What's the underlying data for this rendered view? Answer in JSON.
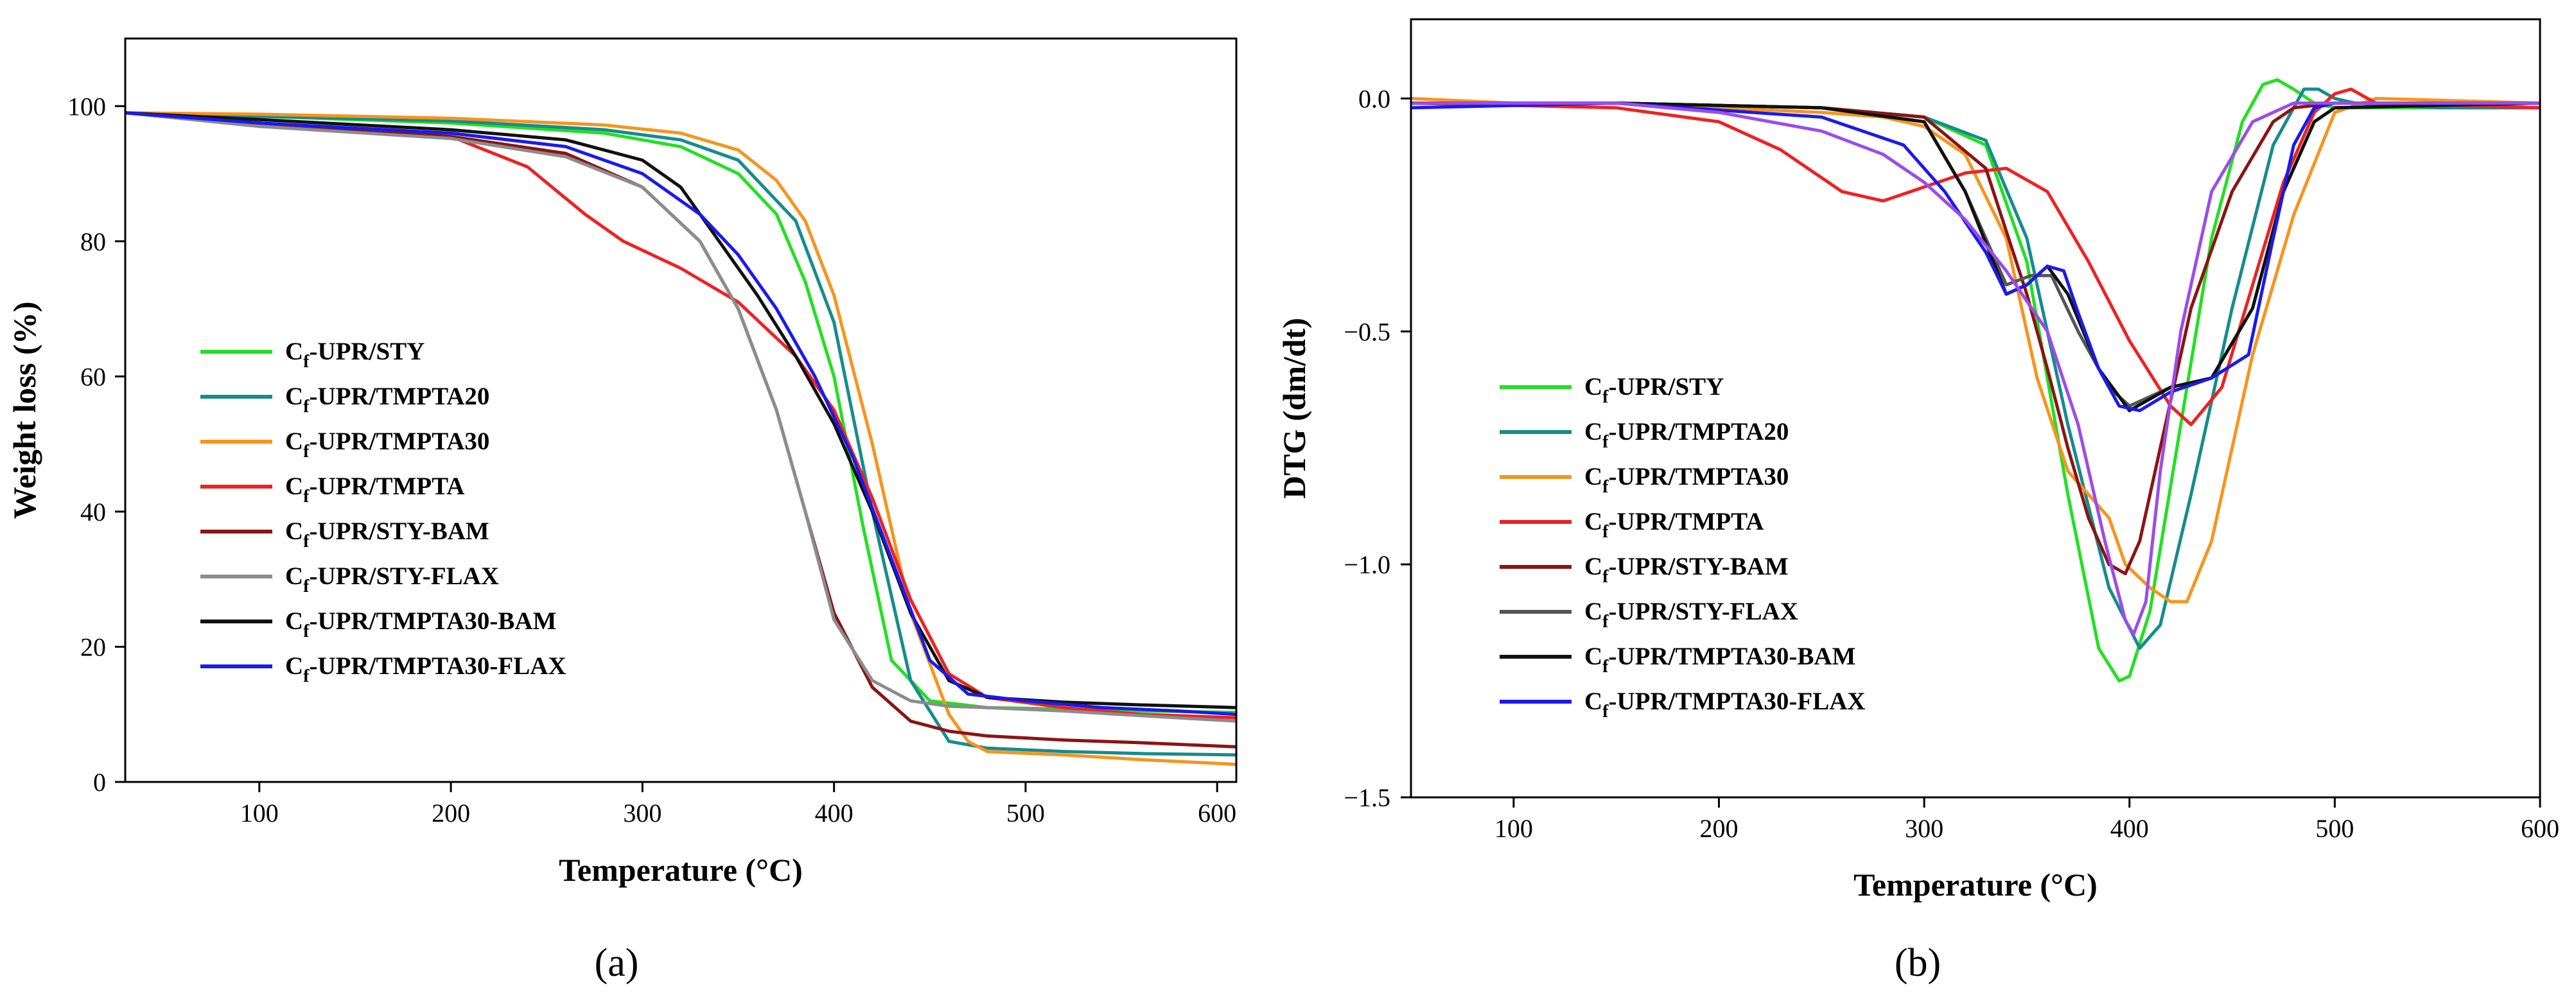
{
  "chart_data": [
    {
      "type": "line",
      "panel_label": "(a)",
      "xlabel": "Temperature (°C)",
      "ylabel": "Weight loss (%)",
      "xlim": [
        30,
        610
      ],
      "ylim": [
        0,
        110
      ],
      "xticks": [
        100,
        200,
        300,
        400,
        500,
        600
      ],
      "yticks": [
        0,
        20,
        40,
        60,
        80,
        100
      ],
      "legend_position": "left-middle",
      "series": [
        {
          "name": "Cf-UPR/STY",
          "prefix": "C",
          "sub": "f",
          "suffix": "-UPR/STY",
          "color": "#22e022",
          "x": [
            30,
            100,
            200,
            280,
            320,
            350,
            370,
            385,
            400,
            415,
            430,
            450,
            480,
            520,
            560,
            610
          ],
          "y": [
            99,
            98.5,
            97.5,
            96,
            94,
            90,
            84,
            74,
            60,
            38,
            18,
            12,
            11,
            10.8,
            10.5,
            10.3
          ]
        },
        {
          "name": "Cf-UPR/TMPTA20",
          "prefix": "C",
          "sub": "f",
          "suffix": "-UPR/TMPTA20",
          "color": "#168c8c",
          "x": [
            30,
            100,
            200,
            280,
            320,
            350,
            380,
            400,
            420,
            440,
            460,
            480,
            520,
            560,
            610
          ],
          "y": [
            99,
            98.5,
            97.8,
            96.5,
            95,
            92,
            83,
            68,
            40,
            15,
            6,
            5,
            4.5,
            4.2,
            4
          ]
        },
        {
          "name": "Cf-UPR/TMPTA30",
          "prefix": "C",
          "sub": "f",
          "suffix": "-UPR/TMPTA30",
          "color": "#f7941d",
          "x": [
            30,
            100,
            200,
            280,
            320,
            350,
            370,
            385,
            400,
            420,
            440,
            460,
            470,
            480,
            520,
            560,
            610
          ],
          "y": [
            99,
            98.8,
            98.2,
            97.2,
            96,
            93.5,
            89,
            83,
            72,
            50,
            25,
            10,
            6,
            4.5,
            4,
            3.3,
            2.6
          ]
        },
        {
          "name": "Cf-UPR/TMPTA",
          "prefix": "C",
          "sub": "f",
          "suffix": "-UPR/TMPTA",
          "color": "#ee2222",
          "x": [
            30,
            100,
            200,
            240,
            270,
            290,
            320,
            350,
            380,
            400,
            420,
            440,
            460,
            480,
            520,
            560,
            610
          ],
          "y": [
            99,
            97.5,
            95.5,
            91,
            84,
            80,
            76,
            71,
            63,
            55,
            42,
            27,
            16,
            12.5,
            11,
            10,
            9.5
          ]
        },
        {
          "name": "Cf-UPR/STY-BAM",
          "prefix": "C",
          "sub": "f",
          "suffix": "-UPR/STY-BAM",
          "color": "#8b1414",
          "x": [
            30,
            100,
            200,
            260,
            300,
            330,
            350,
            370,
            385,
            400,
            420,
            440,
            460,
            480,
            520,
            560,
            610
          ],
          "y": [
            99,
            97.5,
            95.5,
            93,
            88,
            80,
            70,
            55,
            40,
            25,
            14,
            9,
            7.5,
            6.8,
            6.2,
            5.8,
            5.2
          ]
        },
        {
          "name": "Cf-UPR/STY-FLAX",
          "prefix": "C",
          "sub": "f",
          "suffix": "-UPR/STY-FLAX",
          "color": "#8c8c8c",
          "x": [
            30,
            100,
            200,
            260,
            300,
            330,
            350,
            370,
            385,
            400,
            420,
            440,
            460,
            480,
            520,
            560,
            610
          ],
          "y": [
            99,
            97,
            95.2,
            92.5,
            88,
            80,
            70,
            55,
            40,
            24,
            15,
            12,
            11.2,
            11,
            10.5,
            9.8,
            9
          ]
        },
        {
          "name": "Cf-UPR/TMPTA30-BAM",
          "prefix": "C",
          "sub": "f",
          "suffix": "-UPR/TMPTA30-BAM",
          "color": "#111111",
          "x": [
            30,
            100,
            200,
            260,
            300,
            320,
            340,
            360,
            380,
            400,
            420,
            440,
            460,
            480,
            520,
            560,
            610
          ],
          "y": [
            99,
            98,
            96.5,
            95,
            92,
            88,
            80,
            72,
            63,
            53,
            40,
            25,
            15,
            12.5,
            11.8,
            11.4,
            11
          ]
        },
        {
          "name": "Cf-UPR/TMPTA30-FLAX",
          "prefix": "C",
          "sub": "f",
          "suffix": "-UPR/TMPTA30-FLAX",
          "color": "#1a1aee",
          "x": [
            30,
            100,
            200,
            260,
            300,
            330,
            350,
            370,
            390,
            410,
            430,
            450,
            470,
            500,
            540,
            580,
            610
          ],
          "y": [
            99,
            97.5,
            96,
            94,
            90,
            84,
            78,
            70,
            60,
            48,
            33,
            18,
            13,
            12,
            11,
            10.5,
            10
          ]
        }
      ]
    },
    {
      "type": "line",
      "panel_label": "(b)",
      "xlabel": "Temperature (°C)",
      "ylabel": "DTG (dm/dt)",
      "xlim": [
        50,
        600
      ],
      "ylim": [
        -1.5,
        0.17
      ],
      "xticks": [
        100,
        200,
        300,
        400,
        500,
        600
      ],
      "yticks": [
        -1.5,
        -1.0,
        -0.5,
        0.0
      ],
      "ytick_labels": [
        "−1.5",
        "−1.0",
        "−0.5",
        "0.0"
      ],
      "legend_position": "left-middle",
      "series": [
        {
          "name": "Cf-UPR/STY",
          "prefix": "C",
          "sub": "f",
          "suffix": "-UPR/STY",
          "color": "#22e022",
          "x": [
            50,
            150,
            250,
            300,
            330,
            350,
            370,
            385,
            395,
            400,
            410,
            425,
            440,
            455,
            465,
            472,
            480,
            490,
            500,
            540,
            600
          ],
          "y": [
            -0.01,
            -0.01,
            -0.02,
            -0.04,
            -0.1,
            -0.35,
            -0.85,
            -1.18,
            -1.25,
            -1.24,
            -1.1,
            -0.7,
            -0.3,
            -0.05,
            0.03,
            0.04,
            0.02,
            -0.01,
            -0.02,
            -0.02,
            -0.02
          ]
        },
        {
          "name": "Cf-UPR/TMPTA20",
          "prefix": "C",
          "sub": "f",
          "suffix": "-UPR/TMPTA20",
          "color": "#168c8c",
          "x": [
            50,
            150,
            250,
            300,
            330,
            350,
            370,
            390,
            405,
            415,
            430,
            450,
            470,
            485,
            492,
            500,
            510,
            550,
            600
          ],
          "y": [
            -0.01,
            -0.01,
            -0.02,
            -0.04,
            -0.09,
            -0.3,
            -0.7,
            -1.05,
            -1.18,
            -1.13,
            -0.85,
            -0.45,
            -0.1,
            0.02,
            0.02,
            0,
            -0.01,
            -0.02,
            -0.02
          ]
        },
        {
          "name": "Cf-UPR/TMPTA30",
          "prefix": "C",
          "sub": "f",
          "suffix": "-UPR/TMPTA30",
          "color": "#f7941d",
          "x": [
            50,
            100,
            150,
            200,
            250,
            280,
            300,
            320,
            340,
            355,
            370,
            380,
            390,
            398,
            410,
            420,
            428,
            440,
            460,
            480,
            500,
            520,
            600
          ],
          "y": [
            0.0,
            -0.01,
            -0.01,
            -0.02,
            -0.03,
            -0.04,
            -0.06,
            -0.12,
            -0.3,
            -0.6,
            -0.8,
            -0.85,
            -0.9,
            -1.0,
            -1.05,
            -1.08,
            -1.08,
            -0.95,
            -0.55,
            -0.25,
            -0.03,
            0.0,
            -0.01
          ]
        },
        {
          "name": "Cf-UPR/TMPTA",
          "prefix": "C",
          "sub": "f",
          "suffix": "-UPR/TMPTA",
          "color": "#ee2222",
          "x": [
            50,
            150,
            200,
            230,
            260,
            280,
            300,
            320,
            340,
            360,
            380,
            400,
            420,
            430,
            445,
            460,
            475,
            490,
            500,
            508,
            520,
            600
          ],
          "y": [
            -0.01,
            -0.02,
            -0.05,
            -0.11,
            -0.2,
            -0.22,
            -0.19,
            -0.16,
            -0.15,
            -0.2,
            -0.35,
            -0.52,
            -0.66,
            -0.7,
            -0.62,
            -0.4,
            -0.18,
            -0.03,
            0.01,
            0.02,
            -0.01,
            -0.02
          ]
        },
        {
          "name": "Cf-UPR/STY-BAM",
          "prefix": "C",
          "sub": "f",
          "suffix": "-UPR/STY-BAM",
          "color": "#8b1414",
          "x": [
            50,
            150,
            250,
            300,
            330,
            350,
            360,
            370,
            380,
            390,
            398,
            405,
            415,
            430,
            450,
            470,
            480,
            500,
            600
          ],
          "y": [
            -0.01,
            -0.01,
            -0.02,
            -0.04,
            -0.15,
            -0.42,
            -0.58,
            -0.75,
            -0.9,
            -1.0,
            -1.02,
            -0.95,
            -0.75,
            -0.45,
            -0.2,
            -0.05,
            -0.02,
            -0.01,
            -0.01
          ]
        },
        {
          "name": "Cf-UPR/STY-FLAX",
          "prefix": "C",
          "sub": "f",
          "suffix": "-UPR/STY-FLAX",
          "color": "#555555",
          "x": [
            50,
            150,
            250,
            300,
            320,
            340,
            352,
            362,
            375,
            390,
            400,
            420,
            440,
            460,
            475,
            490,
            500,
            600
          ],
          "y": [
            -0.01,
            -0.01,
            -0.02,
            -0.05,
            -0.2,
            -0.4,
            -0.38,
            -0.38,
            -0.5,
            -0.62,
            -0.66,
            -0.62,
            -0.6,
            -0.45,
            -0.2,
            -0.05,
            -0.02,
            -0.01
          ]
        },
        {
          "name": "Cf-UPR/TMPTA30-BAM",
          "prefix": "C",
          "sub": "f",
          "suffix": "-UPR/TMPTA30-BAM",
          "color": "#111111",
          "x": [
            50,
            150,
            250,
            300,
            320,
            340,
            350,
            360,
            370,
            385,
            400,
            420,
            440,
            460,
            475,
            490,
            500,
            600
          ],
          "y": [
            -0.01,
            -0.01,
            -0.02,
            -0.05,
            -0.2,
            -0.42,
            -0.4,
            -0.36,
            -0.42,
            -0.58,
            -0.67,
            -0.62,
            -0.6,
            -0.45,
            -0.2,
            -0.05,
            -0.02,
            -0.01
          ]
        },
        {
          "name": "Cf-UPR/TMPTA30-FLAX",
          "prefix": "C",
          "sub": "f",
          "suffix": "-UPR/TMPTA30-FLAX",
          "color": "#1a1aee",
          "x": [
            50,
            150,
            250,
            290,
            310,
            330,
            340,
            350,
            360,
            368,
            375,
            385,
            395,
            405,
            420,
            440,
            458,
            470,
            480,
            490,
            500,
            600
          ],
          "y": [
            -0.02,
            -0.01,
            -0.04,
            -0.1,
            -0.2,
            -0.33,
            -0.42,
            -0.4,
            -0.36,
            -0.37,
            -0.46,
            -0.58,
            -0.66,
            -0.67,
            -0.63,
            -0.6,
            -0.55,
            -0.3,
            -0.1,
            -0.02,
            -0.01,
            -0.01
          ]
        },
        {
          "name": "violet-trace",
          "color": "#9b4de8",
          "in_legend": false,
          "x": [
            50,
            150,
            200,
            250,
            280,
            300,
            320,
            340,
            360,
            375,
            388,
            398,
            402,
            408,
            415,
            425,
            440,
            460,
            480,
            500,
            600
          ],
          "y": [
            -0.01,
            -0.01,
            -0.03,
            -0.07,
            -0.12,
            -0.18,
            -0.26,
            -0.37,
            -0.5,
            -0.7,
            -0.95,
            -1.12,
            -1.15,
            -1.08,
            -0.8,
            -0.5,
            -0.2,
            -0.05,
            -0.01,
            -0.01,
            -0.01
          ]
        }
      ]
    }
  ]
}
